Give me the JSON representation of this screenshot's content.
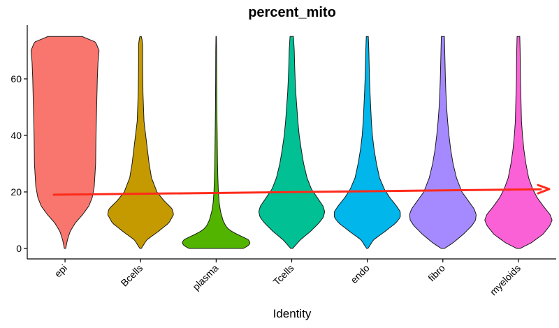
{
  "chart_data": {
    "type": "violin",
    "title": "percent_mito",
    "xlabel": "Identity",
    "ylabel": "",
    "ylim": [
      -3,
      80
    ],
    "yticks": [
      "0",
      "20",
      "40",
      "60"
    ],
    "categories": [
      "epi",
      "Bcells",
      "plasma",
      "Tcells",
      "endo",
      "fibro",
      "myeloids"
    ],
    "series": [
      {
        "name": "epi",
        "color": "#F8766D",
        "profile": [
          [
            0,
            0.02
          ],
          [
            3,
            0.07
          ],
          [
            6,
            0.15
          ],
          [
            9,
            0.3
          ],
          [
            12,
            0.52
          ],
          [
            15,
            0.7
          ],
          [
            18,
            0.8
          ],
          [
            22,
            0.86
          ],
          [
            30,
            0.9
          ],
          [
            40,
            0.91
          ],
          [
            50,
            0.93
          ],
          [
            60,
            0.95
          ],
          [
            66,
            0.97
          ],
          [
            70,
            1.0
          ],
          [
            73,
            0.9
          ],
          [
            75,
            0.5
          ]
        ]
      },
      {
        "name": "Bcells",
        "color": "#C49A00",
        "profile": [
          [
            0,
            0.02
          ],
          [
            3,
            0.18
          ],
          [
            6,
            0.52
          ],
          [
            9,
            0.83
          ],
          [
            12,
            0.97
          ],
          [
            14,
            0.93
          ],
          [
            17,
            0.68
          ],
          [
            20,
            0.48
          ],
          [
            25,
            0.32
          ],
          [
            30,
            0.25
          ],
          [
            35,
            0.2
          ],
          [
            40,
            0.15
          ],
          [
            45,
            0.1
          ],
          [
            50,
            0.085
          ],
          [
            55,
            0.07
          ],
          [
            60,
            0.065
          ],
          [
            65,
            0.06
          ],
          [
            70,
            0.06
          ],
          [
            72,
            0.06
          ],
          [
            74,
            0.04
          ],
          [
            75,
            0.02
          ]
        ]
      },
      {
        "name": "plasma",
        "color": "#53B400",
        "profile": [
          [
            0,
            0.8
          ],
          [
            1,
            0.95
          ],
          [
            2,
            1.0
          ],
          [
            3,
            0.96
          ],
          [
            4,
            0.8
          ],
          [
            5,
            0.62
          ],
          [
            6,
            0.46
          ],
          [
            7,
            0.35
          ],
          [
            8,
            0.28
          ],
          [
            10,
            0.2
          ],
          [
            13,
            0.13
          ],
          [
            16,
            0.09
          ],
          [
            20,
            0.065
          ],
          [
            25,
            0.05
          ],
          [
            30,
            0.04
          ],
          [
            40,
            0.03
          ],
          [
            50,
            0.02
          ],
          [
            60,
            0.015
          ],
          [
            70,
            0.012
          ],
          [
            75,
            0.006
          ]
        ]
      },
      {
        "name": "Tcells",
        "color": "#00C094",
        "profile": [
          [
            0,
            0.03
          ],
          [
            3,
            0.25
          ],
          [
            6,
            0.55
          ],
          [
            9,
            0.8
          ],
          [
            11,
            0.93
          ],
          [
            13,
            0.97
          ],
          [
            15,
            0.92
          ],
          [
            18,
            0.75
          ],
          [
            21,
            0.58
          ],
          [
            25,
            0.45
          ],
          [
            30,
            0.35
          ],
          [
            35,
            0.28
          ],
          [
            40,
            0.22
          ],
          [
            45,
            0.18
          ],
          [
            50,
            0.15
          ],
          [
            55,
            0.12
          ],
          [
            60,
            0.1
          ],
          [
            65,
            0.085
          ],
          [
            70,
            0.075
          ],
          [
            73,
            0.06
          ],
          [
            75,
            0.05
          ]
        ]
      },
      {
        "name": "endo",
        "color": "#00B6EB",
        "profile": [
          [
            0,
            0.02
          ],
          [
            3,
            0.18
          ],
          [
            6,
            0.52
          ],
          [
            9,
            0.84
          ],
          [
            11,
            0.97
          ],
          [
            13,
            0.97
          ],
          [
            15,
            0.86
          ],
          [
            18,
            0.66
          ],
          [
            21,
            0.5
          ],
          [
            25,
            0.36
          ],
          [
            30,
            0.27
          ],
          [
            35,
            0.2
          ],
          [
            40,
            0.15
          ],
          [
            45,
            0.12
          ],
          [
            50,
            0.1
          ],
          [
            55,
            0.08
          ],
          [
            60,
            0.065
          ],
          [
            65,
            0.055
          ],
          [
            70,
            0.045
          ],
          [
            75,
            0.03
          ]
        ]
      },
      {
        "name": "fibro",
        "color": "#A58AFF",
        "profile": [
          [
            0,
            0.05
          ],
          [
            2,
            0.3
          ],
          [
            5,
            0.6
          ],
          [
            8,
            0.85
          ],
          [
            10,
            0.96
          ],
          [
            12,
            0.98
          ],
          [
            14,
            0.92
          ],
          [
            17,
            0.74
          ],
          [
            20,
            0.56
          ],
          [
            25,
            0.4
          ],
          [
            30,
            0.3
          ],
          [
            35,
            0.23
          ],
          [
            40,
            0.18
          ],
          [
            45,
            0.14
          ],
          [
            50,
            0.11
          ],
          [
            55,
            0.09
          ],
          [
            60,
            0.075
          ],
          [
            65,
            0.065
          ],
          [
            70,
            0.055
          ],
          [
            75,
            0.045
          ]
        ]
      },
      {
        "name": "myeloids",
        "color": "#FB61D7",
        "profile": [
          [
            0,
            0.05
          ],
          [
            2,
            0.38
          ],
          [
            5,
            0.72
          ],
          [
            8,
            0.92
          ],
          [
            10,
            0.99
          ],
          [
            12,
            0.93
          ],
          [
            15,
            0.73
          ],
          [
            18,
            0.55
          ],
          [
            21,
            0.42
          ],
          [
            25,
            0.3
          ],
          [
            30,
            0.22
          ],
          [
            35,
            0.16
          ],
          [
            40,
            0.12
          ],
          [
            45,
            0.09
          ],
          [
            50,
            0.08
          ],
          [
            55,
            0.07
          ],
          [
            60,
            0.06
          ],
          [
            65,
            0.055
          ],
          [
            70,
            0.05
          ],
          [
            75,
            0.04
          ]
        ]
      }
    ],
    "annotation": {
      "type": "arrow",
      "color": "#FF2A1A",
      "from": {
        "category": "epi",
        "y": 19
      },
      "to": {
        "category": "myeloids",
        "y": 21
      }
    }
  }
}
